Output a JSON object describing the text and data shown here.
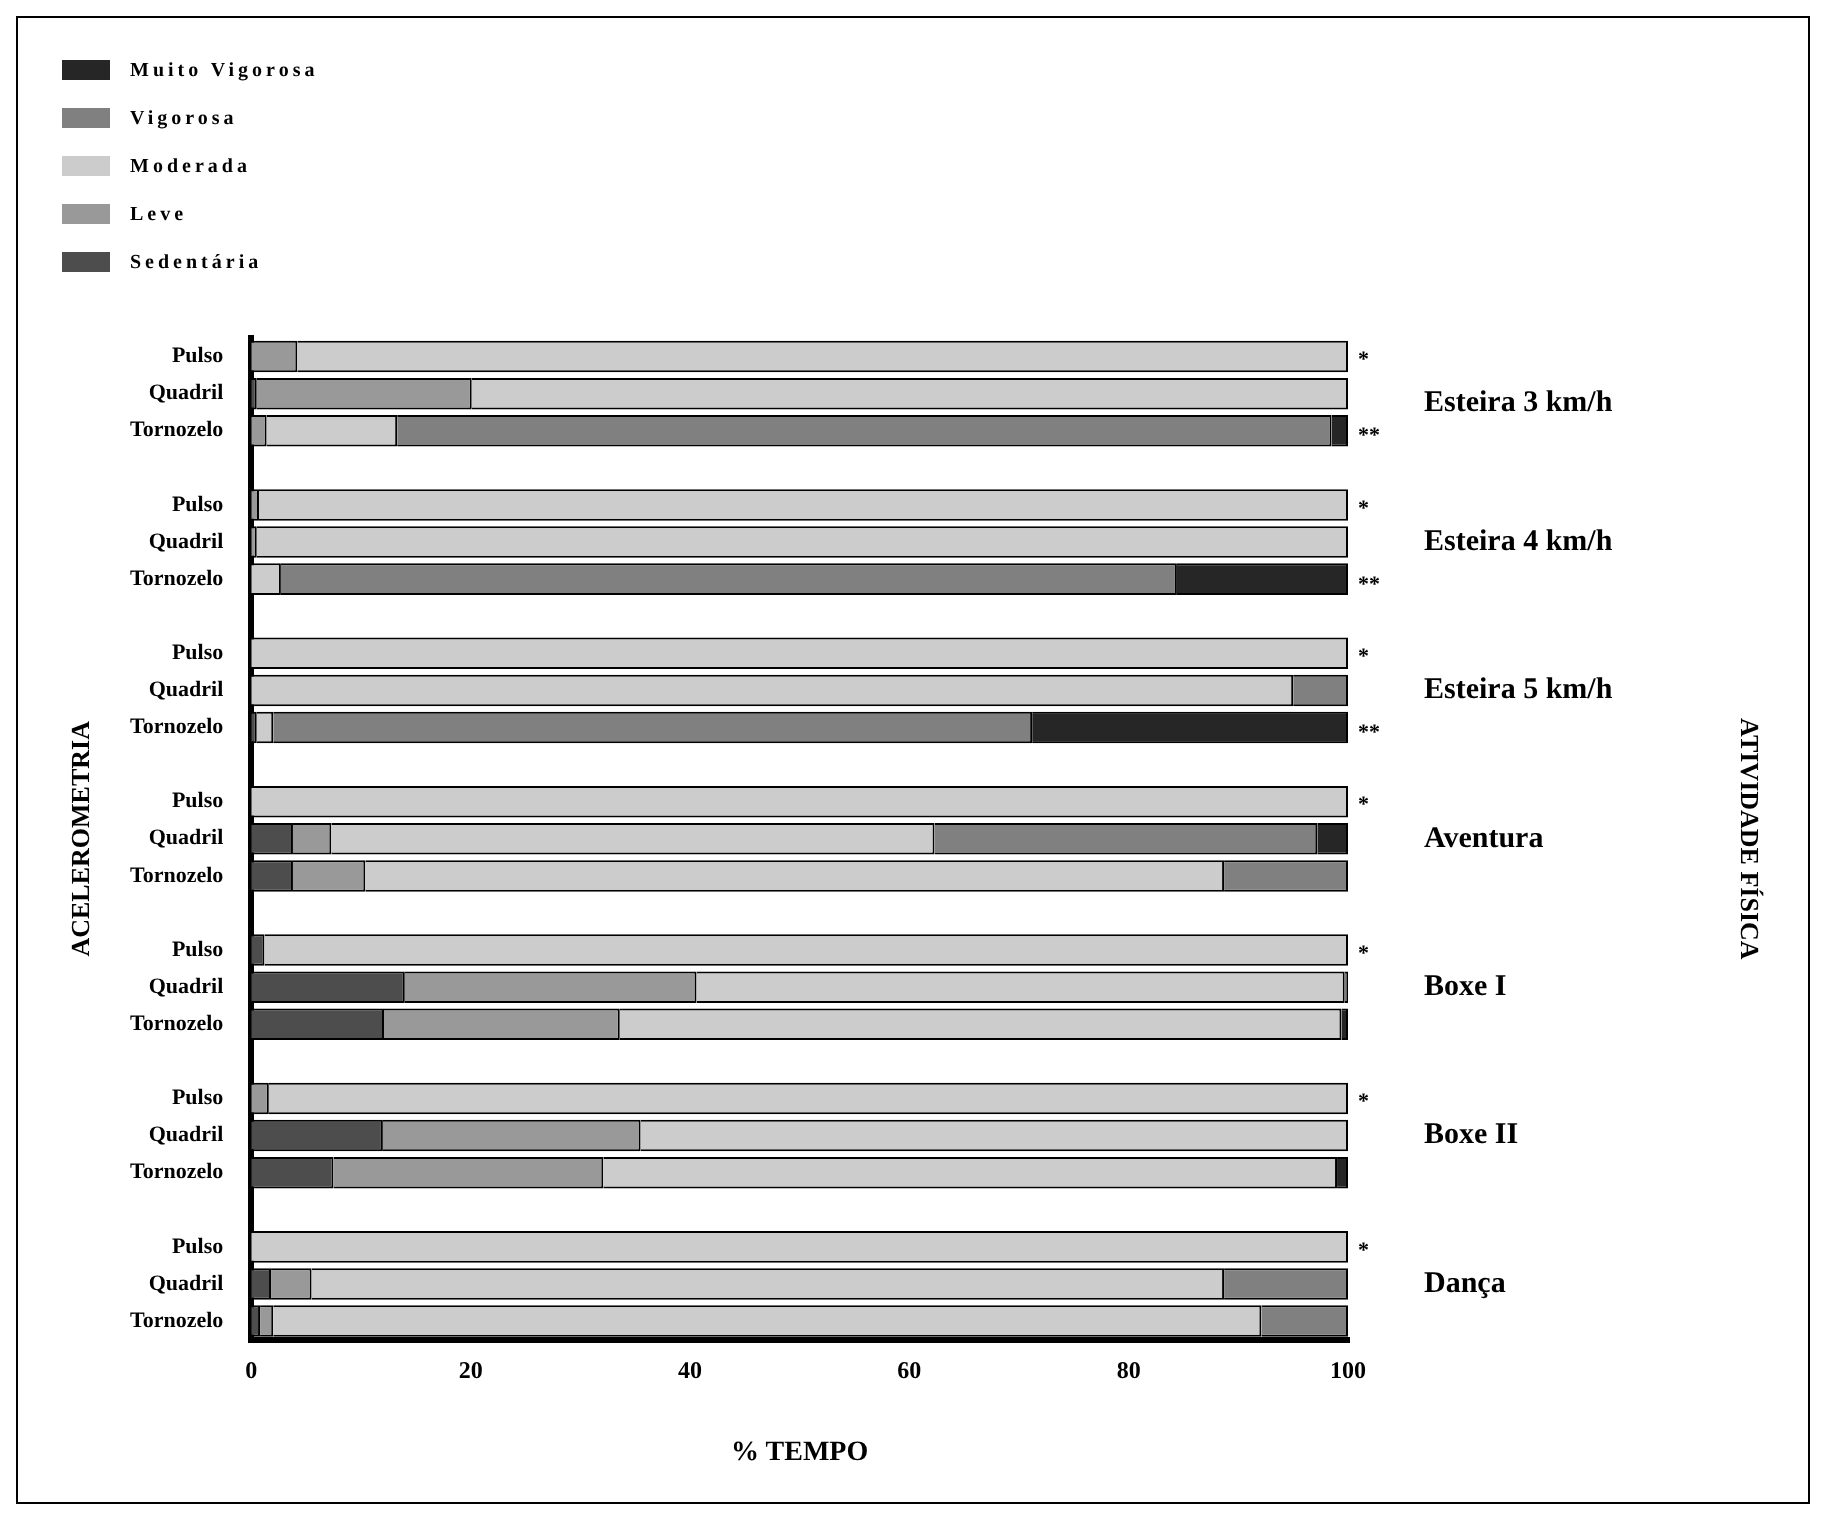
{
  "chart_data": {
    "type": "bar",
    "orientation": "horizontal",
    "stacked": true,
    "categories": [
      "Pulso",
      "Quadril",
      "Tornozelo",
      null,
      "Pulso",
      "Quadril",
      "Tornozelo",
      null,
      "Pulso",
      "Quadril",
      "Tornozelo",
      null,
      "Pulso",
      "Quadril",
      "Tornozelo",
      null,
      "Pulso",
      "Quadril",
      "Tornozelo",
      null,
      "Pulso",
      "Quadril",
      "Tornozelo",
      null,
      "Pulso",
      "Quadril",
      "Tornozelo"
    ],
    "series": [
      {
        "name": "Sedentária",
        "color": "#4d4d4d",
        "values": [
          0,
          0.5,
          0,
          null,
          0,
          0,
          0,
          null,
          0,
          0,
          0.5,
          null,
          0,
          3.8,
          3.8,
          null,
          1.2,
          14.0,
          12.1,
          null,
          0,
          12.0,
          7.5,
          null,
          0,
          1.8,
          0.8
        ]
      },
      {
        "name": "Leve",
        "color": "#999999",
        "values": [
          4.2,
          19.6,
          1.4,
          null,
          0.7,
          0.5,
          0,
          null,
          0,
          0,
          0,
          null,
          0,
          3.5,
          6.6,
          null,
          0,
          26.6,
          21.5,
          null,
          1.6,
          23.5,
          24.6,
          null,
          0,
          3.7,
          1.2
        ]
      },
      {
        "name": "Moderada",
        "color": "#cccccc",
        "values": [
          95.8,
          79.9,
          11.9,
          null,
          99.3,
          99.5,
          2.7,
          null,
          100,
          95.0,
          1.5,
          null,
          100,
          55.0,
          78.3,
          null,
          98.8,
          59.1,
          65.8,
          null,
          98.4,
          64.5,
          66.9,
          null,
          100,
          83.2,
          90.1
        ]
      },
      {
        "name": "Vigorosa",
        "color": "#808080",
        "values": [
          0,
          0,
          85.2,
          null,
          0,
          0,
          81.7,
          null,
          0,
          5.0,
          69.2,
          null,
          0,
          34.9,
          11.3,
          null,
          0,
          0.3,
          0,
          null,
          0,
          0,
          0,
          null,
          0,
          11.3,
          7.9
        ]
      },
      {
        "name": "Muito Vigorosa",
        "color": "#262626",
        "values": [
          0,
          0,
          1.5,
          null,
          0,
          0,
          15.6,
          null,
          0,
          0,
          28.8,
          null,
          0,
          2.8,
          0,
          null,
          0,
          0,
          0.6,
          null,
          0,
          0,
          1.0,
          null,
          0,
          0,
          0
        ]
      }
    ],
    "xlim": [
      0,
      100
    ],
    "xticks": [
      0,
      20,
      40,
      60,
      80,
      100
    ],
    "grid": false,
    "legend": "top left",
    "xlabel": "% TEMPO",
    "ylabel": "ACELEROMETRIA",
    "annotations": [
      "Esteira 3 km/h",
      "Esteira 4 km/h",
      "Esteira 5 km/h",
      "Aventura",
      "Boxe I",
      "Boxe II",
      "Dança",
      "*",
      "*",
      "*",
      "*",
      "*",
      "*",
      "*",
      "**",
      "**",
      "**",
      "ATIVIDADE FÍSICA"
    ]
  }
}
